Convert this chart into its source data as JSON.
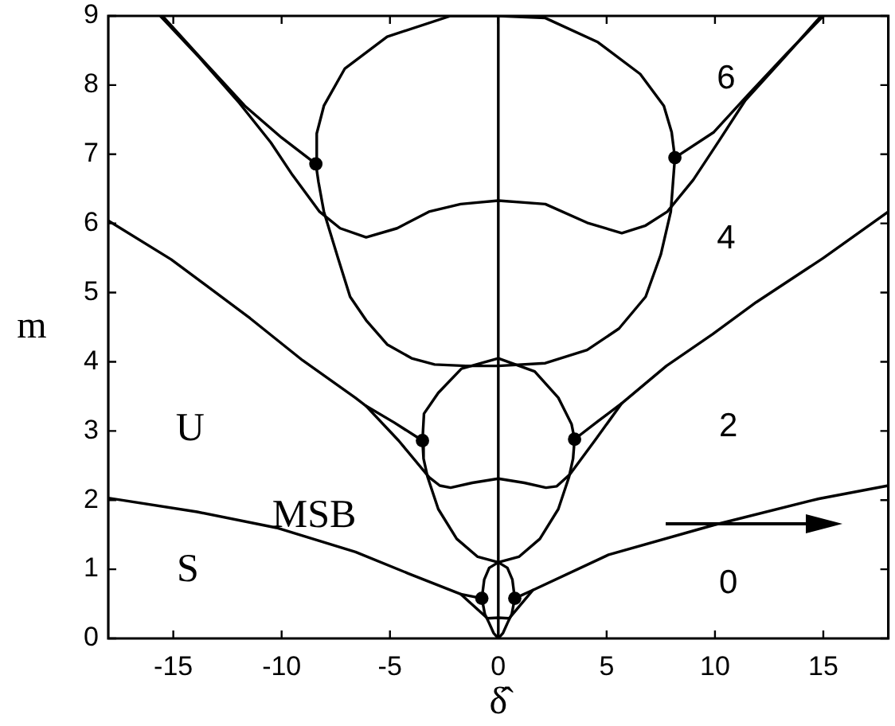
{
  "chart_data": {
    "type": "line",
    "xlabel": "δ̂",
    "ylabel": "m",
    "xlim": [
      -18,
      18
    ],
    "ylim": [
      0,
      9
    ],
    "xticks": [
      -15,
      -10,
      -5,
      0,
      5,
      10,
      15
    ],
    "yticks": [
      0,
      1,
      2,
      3,
      4,
      5,
      6,
      7,
      8,
      9
    ],
    "ref_lines": [
      {
        "axis": "x",
        "value": 0,
        "color": "#000000"
      }
    ],
    "annotations": [
      "U",
      "S",
      {
        "text": "MSB",
        "x": -8.5,
        "y": 1.43
      },
      "6",
      "4",
      "2",
      "0"
    ],
    "series": [
      {
        "color": "#000000",
        "x": [
          -8.42,
          -8.38,
          -8.05,
          -7.08,
          -5.13,
          -2.2,
          0,
          2.17,
          4.6,
          6.55,
          7.64,
          8.0,
          8.15,
          9.95,
          11.5,
          13.3,
          15.0
        ],
        "values": [
          6.86,
          7.3,
          7.7,
          8.24,
          8.7,
          9.0,
          9.0,
          8.97,
          8.62,
          8.16,
          7.7,
          7.32,
          6.95,
          7.32,
          7.85,
          8.45,
          9.0
        ]
      },
      {
        "color": "#000000",
        "x": [
          -15.5,
          -13.7,
          -11.7,
          -10.0,
          -8.42,
          -8.3,
          -8.05,
          -7.4,
          -6.84,
          -6.1,
          -5.13,
          -4.0,
          -2.94,
          -1.5,
          0,
          2.17,
          4.1,
          5.57,
          6.8,
          7.5,
          7.96,
          8.15
        ],
        "values": [
          9.0,
          8.38,
          7.7,
          7.24,
          6.86,
          6.6,
          6.17,
          5.5,
          4.94,
          4.6,
          4.25,
          4.05,
          3.96,
          3.94,
          3.94,
          3.98,
          4.17,
          4.48,
          4.94,
          5.55,
          6.17,
          6.95
        ]
      },
      {
        "color": "#000000",
        "x": [
          -15.6,
          -13.8,
          -11.95,
          -10.5,
          -9.5,
          -8.25,
          -7.3,
          -6.1,
          -4.67,
          -3.2,
          -1.74,
          0,
          2.17,
          4.1,
          5.7,
          6.8,
          7.8,
          9.0,
          10.2,
          11.4,
          13.2,
          14.9
        ],
        "values": [
          9.0,
          8.4,
          7.74,
          7.17,
          6.7,
          6.17,
          5.93,
          5.8,
          5.93,
          6.17,
          6.28,
          6.33,
          6.28,
          6.01,
          5.86,
          5.97,
          6.17,
          6.63,
          7.2,
          7.78,
          8.4,
          9.0
        ]
      },
      {
        "color": "#000000",
        "x": [
          -3.5,
          -3.43,
          -2.77,
          -1.7,
          0,
          1.68,
          2.77,
          3.38,
          3.52,
          4.6,
          5.7
        ],
        "values": [
          2.86,
          3.25,
          3.55,
          3.9,
          4.05,
          3.86,
          3.48,
          3.1,
          2.88,
          3.14,
          3.4
        ]
      },
      {
        "color": "#000000",
        "x": [
          -6.1,
          -4.8,
          -3.5,
          -3.45,
          -3.26,
          -2.77,
          -1.92,
          -0.95,
          0,
          0.95,
          1.92,
          2.77,
          3.26,
          3.45,
          3.52
        ],
        "values": [
          3.36,
          3.12,
          2.86,
          2.6,
          2.33,
          1.87,
          1.44,
          1.18,
          1.1,
          1.18,
          1.44,
          1.87,
          2.33,
          2.6,
          2.88
        ]
      },
      {
        "color": "#000000",
        "x": [
          -18,
          -15.1,
          -11.46,
          -9.03,
          -6.6,
          -6.1,
          -4.6,
          -3.19,
          -2.7,
          -2.2,
          -1.2,
          0,
          1.2,
          2.2,
          2.7,
          3.3,
          4.5,
          5.7,
          7.76,
          9.9,
          11.9,
          15,
          18
        ],
        "values": [
          6.04,
          5.48,
          4.63,
          4.02,
          3.48,
          3.36,
          2.86,
          2.33,
          2.21,
          2.18,
          2.25,
          2.31,
          2.25,
          2.18,
          2.2,
          2.37,
          2.88,
          3.4,
          3.94,
          4.4,
          4.86,
          5.5,
          6.17
        ]
      },
      {
        "color": "#000000",
        "x": [
          -0.76,
          -0.65,
          -0.42,
          0,
          0.42,
          0.65,
          0.76,
          1.6
        ],
        "values": [
          0.58,
          0.85,
          1.02,
          1.1,
          1.02,
          0.85,
          0.58,
          0.7
        ]
      },
      {
        "color": "#000000",
        "x": [
          -1.73,
          -0.76,
          -0.62,
          -0.42,
          -0.22,
          0,
          0.22,
          0.42,
          0.62,
          0.76
        ],
        "values": [
          0.64,
          0.58,
          0.35,
          0.22,
          0.08,
          0,
          0.08,
          0.22,
          0.35,
          0.58
        ]
      },
      {
        "color": "#000000",
        "x": [
          -18,
          -13.9,
          -10.24,
          -6.59,
          -4.16,
          -1.73,
          -0.5,
          0,
          0.5,
          1.6,
          5.09,
          9.95,
          14.8,
          18
        ],
        "values": [
          2.03,
          1.83,
          1.6,
          1.25,
          0.94,
          0.64,
          0.29,
          0.3,
          0.29,
          0.7,
          1.21,
          1.64,
          2.02,
          2.21
        ]
      },
      {
        "type": "scatter",
        "marker": "circle",
        "color": "#000000",
        "x": [
          -8.42,
          8.15,
          -3.5,
          3.52,
          -0.76,
          0.76
        ],
        "values": [
          6.86,
          6.95,
          2.86,
          2.88,
          0.58,
          0.58
        ]
      }
    ]
  }
}
